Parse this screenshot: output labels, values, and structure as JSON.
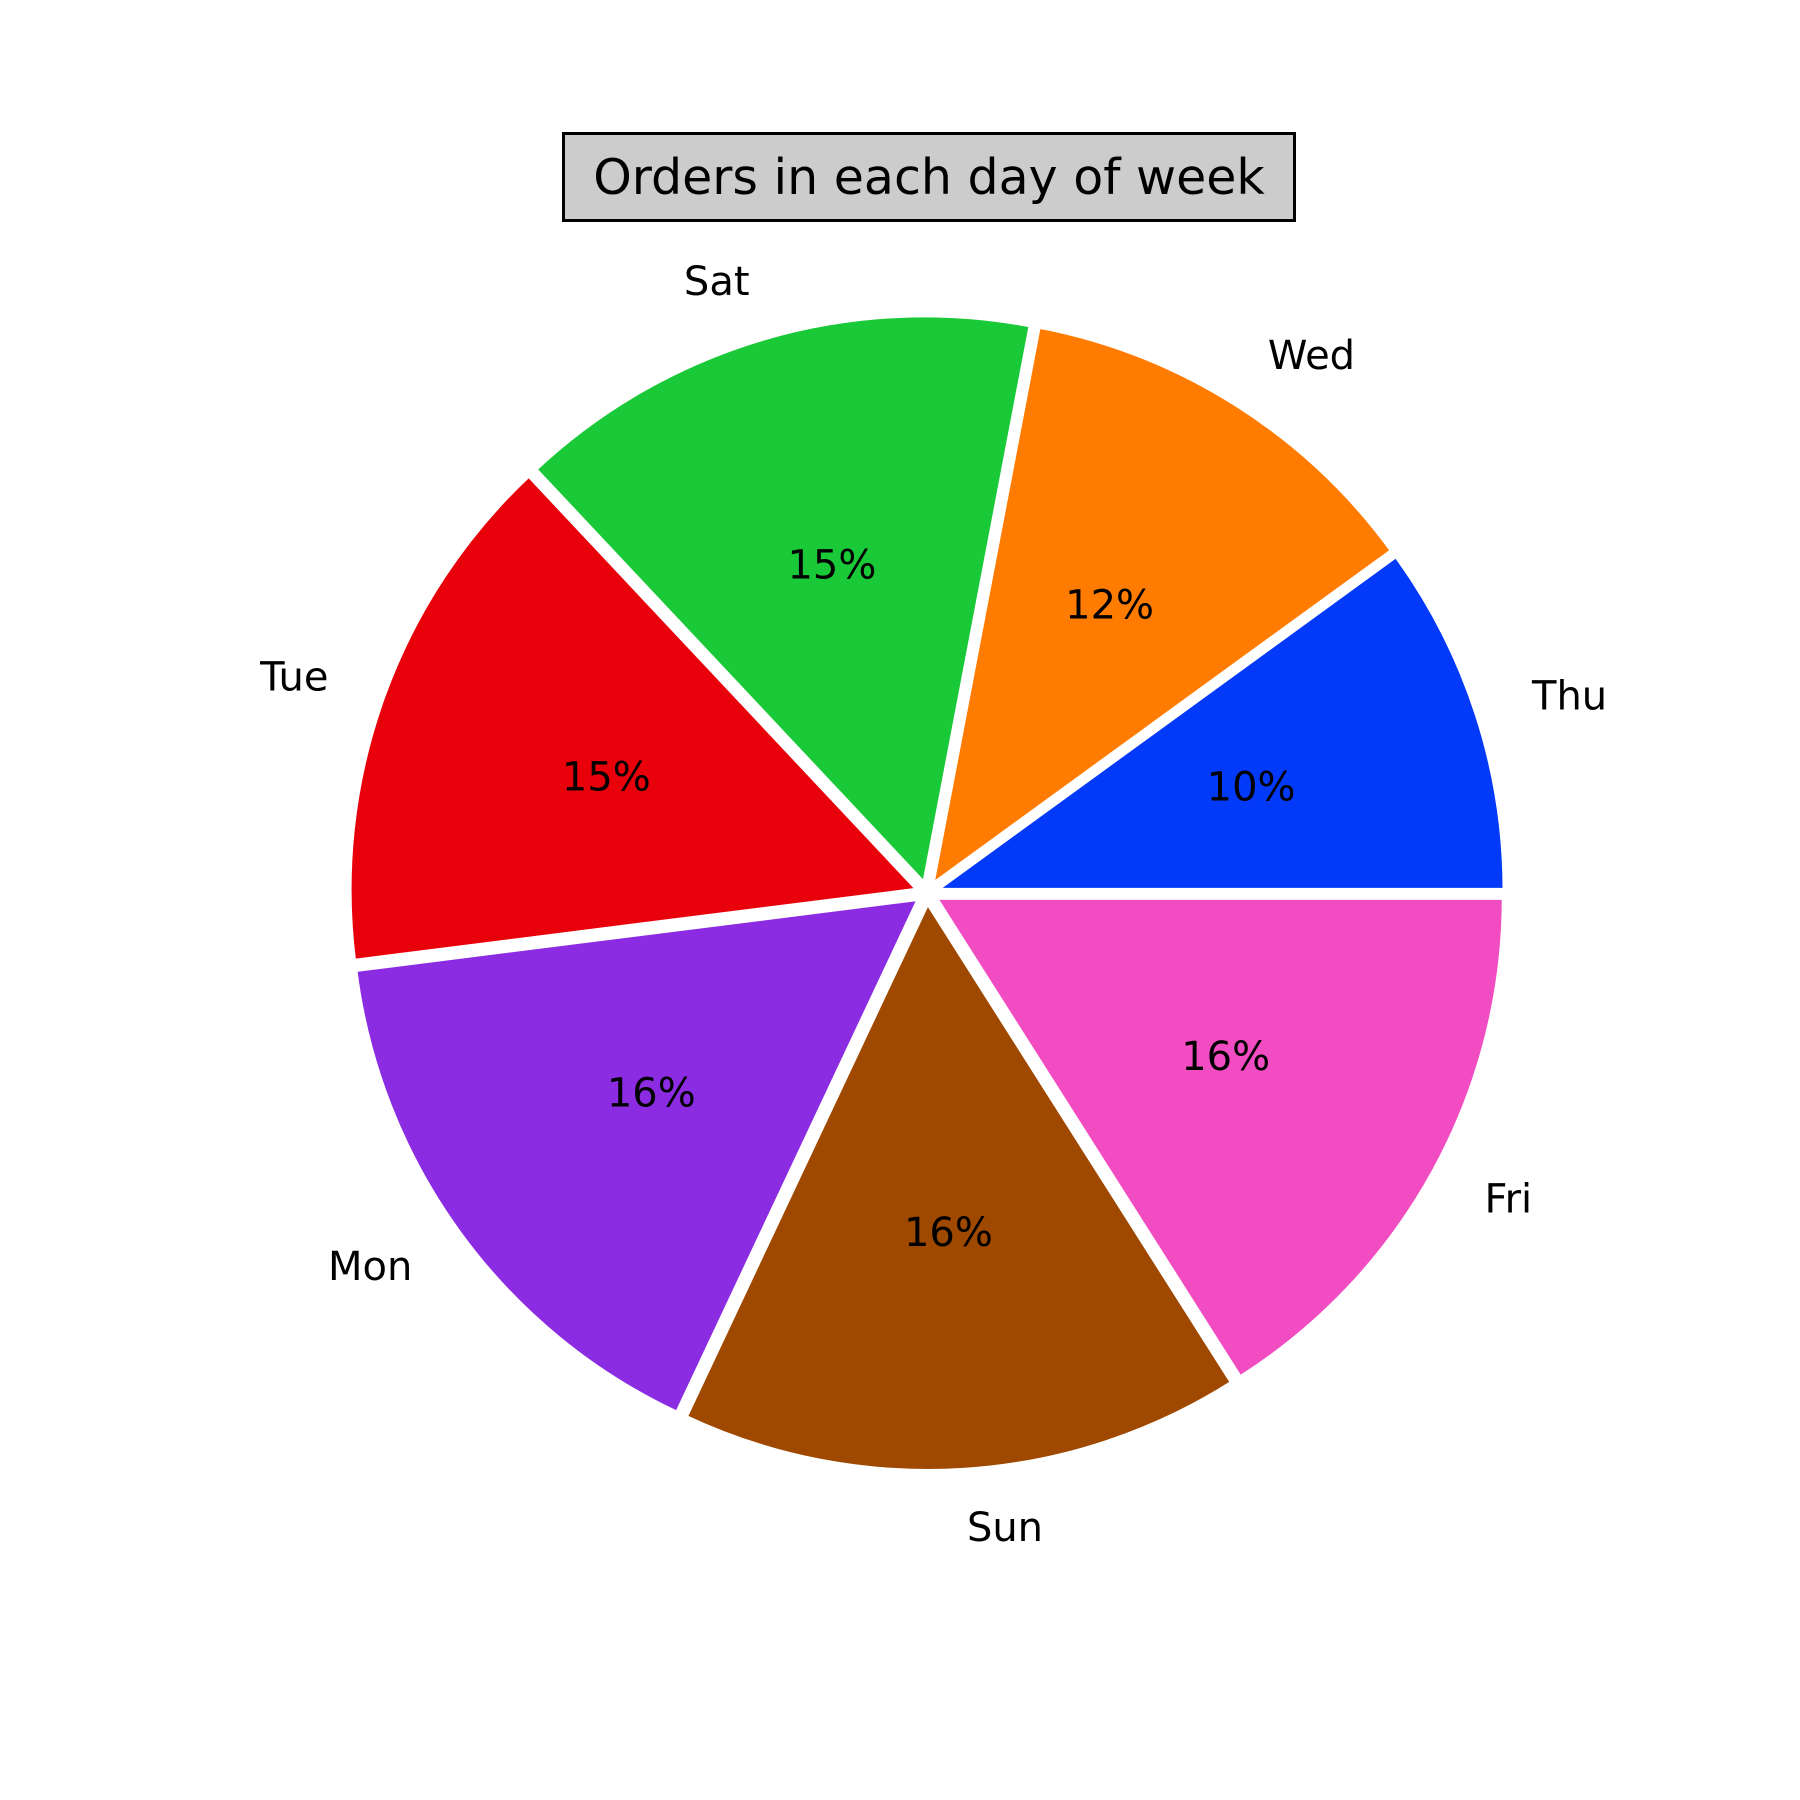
{
  "chart_data": {
    "type": "pie",
    "title": "Orders in each day of week",
    "slices": [
      {
        "label": "Thu",
        "value": 10,
        "pct_text": "10%",
        "color": "#0339f8"
      },
      {
        "label": "Wed",
        "value": 12,
        "pct_text": "12%",
        "color": "#ff7c00"
      },
      {
        "label": "Sat",
        "value": 15,
        "pct_text": "15%",
        "color": "#1ac938"
      },
      {
        "label": "Tue",
        "value": 15,
        "pct_text": "15%",
        "color": "#e8000b"
      },
      {
        "label": "Mon",
        "value": 16,
        "pct_text": "16%",
        "color": "#8b2be2"
      },
      {
        "label": "Sun",
        "value": 16,
        "pct_text": "16%",
        "color": "#9f4800"
      },
      {
        "label": "Fri",
        "value": 16,
        "pct_text": "16%",
        "color": "#f14cc1"
      }
    ],
    "start_angle_deg": 0,
    "direction": "counterclockwise",
    "exploded": true,
    "edge_color": "#ffffff",
    "legend": "none"
  }
}
